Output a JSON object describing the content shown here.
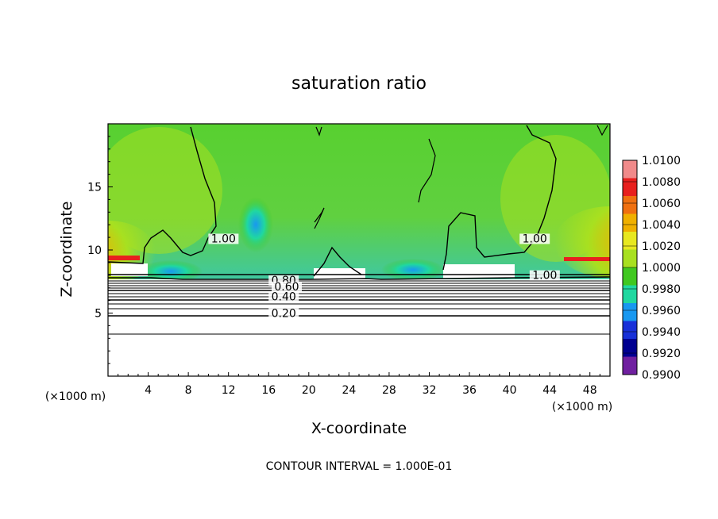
{
  "chart_data": {
    "type": "heatmap",
    "title": "saturation ratio",
    "xlabel": "X-coordinate",
    "ylabel": "Z-coordinate",
    "x_unit_left": "(×1000 m)",
    "x_unit_right": "(×1000 m)",
    "footer": "CONTOUR INTERVAL = 1.000E-01",
    "xlim": [
      0,
      50
    ],
    "ylim": [
      0,
      20
    ],
    "x_ticks": [
      4,
      8,
      12,
      16,
      20,
      24,
      28,
      32,
      36,
      40,
      44,
      48
    ],
    "y_ticks": [
      5,
      10,
      15
    ],
    "colorbar": {
      "levels": [
        "1.0100",
        "1.0080",
        "1.0060",
        "1.0040",
        "1.0020",
        "1.0000",
        "0.9980",
        "0.9960",
        "0.9940",
        "0.9920",
        "0.9900"
      ],
      "colors": [
        "#f08a8a",
        "#e8201e",
        "#f07010",
        "#f0b000",
        "#e8e820",
        "#a8e020",
        "#40c820",
        "#20d8a0",
        "#1898f0",
        "#1830d8",
        "#000090",
        "#7020a0"
      ]
    },
    "contour_labels": [
      {
        "text": "1.00",
        "x": 11.5,
        "y": 10.6
      },
      {
        "text": "1.00",
        "x": 42.5,
        "y": 10.6
      },
      {
        "text": "1.00",
        "x": 43.5,
        "y": 7.7
      },
      {
        "text": "0.80",
        "x": 17.5,
        "y": 7.3
      },
      {
        "text": "0.60",
        "x": 17.8,
        "y": 6.8
      },
      {
        "text": "0.40",
        "x": 17.5,
        "y": 6.0
      },
      {
        "text": "0.20",
        "x": 17.5,
        "y": 4.7
      }
    ],
    "grid": false,
    "legend": "colorbar-right"
  }
}
